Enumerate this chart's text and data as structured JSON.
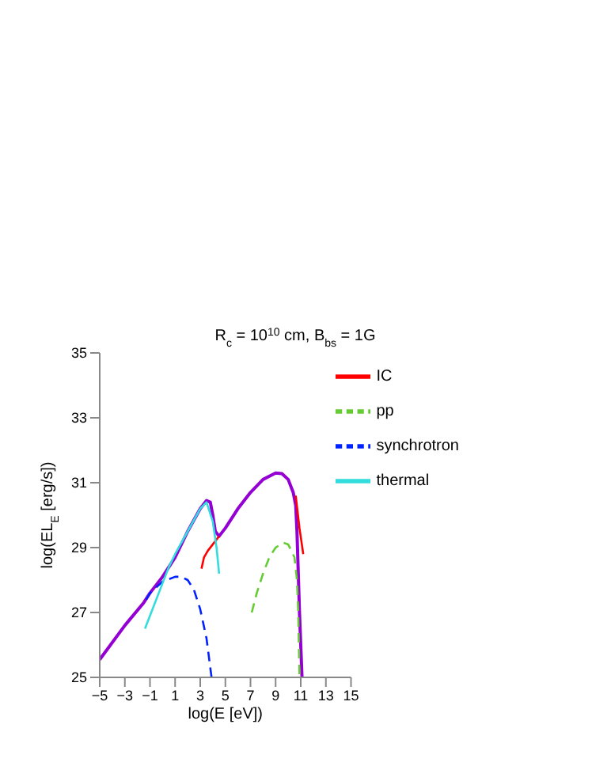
{
  "chart_data": {
    "type": "line",
    "title": "R$_{c}$ = 10$^{10}$ cm, B$_{bs}$ = 1G",
    "xlabel": "log(E [eV])",
    "ylabel": "log(EL$_{E}$ [erg/s])",
    "xlim": [
      -5,
      15
    ],
    "xticks": [
      -5,
      -3,
      -1,
      1,
      3,
      5,
      7,
      9,
      11,
      13,
      15
    ],
    "ylim": [
      25,
      35
    ],
    "yticks": [
      25,
      27,
      29,
      31,
      33,
      35
    ],
    "legend": "top right",
    "marker": "none",
    "series": [
      {
        "color": "#9400d3",
        "line_style": "solid",
        "x": [
          -5,
          -3,
          -1.5,
          -1,
          0,
          1,
          2,
          3,
          3.5,
          3.8,
          4,
          4.2,
          4.5,
          5,
          6,
          7,
          8,
          9,
          9.5,
          10,
          10.4,
          10.6,
          10.7,
          10.9,
          11.1
        ],
        "values": [
          25.55,
          26.6,
          27.3,
          27.6,
          28.1,
          28.7,
          29.5,
          30.2,
          30.45,
          30.4,
          30,
          29.5,
          29.35,
          29.6,
          30.2,
          30.7,
          31.1,
          31.3,
          31.28,
          31.1,
          30.7,
          30.3,
          29.5,
          27,
          25
        ]
      },
      {
        "name": "IC",
        "color": "#ff0000",
        "line_style": "solid",
        "x": [
          3.1,
          3.3,
          3.6,
          4,
          4.5,
          4.6,
          10.6,
          10.9,
          11.2
        ],
        "values": [
          28.35,
          28.7,
          28.9,
          29.1,
          29.35,
          null,
          30.6,
          29.6,
          28.8
        ]
      },
      {
        "name": "pp",
        "color": "#66cc33",
        "line_style": "dashed",
        "x": [
          7.1,
          7.5,
          8,
          8.5,
          9,
          9.6,
          10,
          10.5,
          10.7,
          10.8,
          10.9
        ],
        "values": [
          27,
          27.6,
          28.2,
          28.7,
          29,
          29.15,
          29.1,
          28.7,
          28,
          27,
          25
        ]
      },
      {
        "name": "synchrotron",
        "color": "#0022ff",
        "line_style": "dashed",
        "x": [
          -1.3,
          -1,
          0,
          1,
          1.5,
          2,
          2.5,
          3,
          3.5,
          3.8,
          3.9
        ],
        "values": [
          27.4,
          27.6,
          27.95,
          28.1,
          28.1,
          28,
          27.7,
          27.1,
          26.2,
          25.3,
          25
        ]
      },
      {
        "name": "thermal",
        "color": "#33dddd",
        "line_style": "solid",
        "x": [
          -1.4,
          -0.5,
          0.5,
          1,
          2,
          3,
          3.5,
          4,
          4.3,
          4.5
        ],
        "values": [
          26.5,
          27.4,
          28.4,
          28.8,
          29.5,
          30.2,
          30.4,
          29.8,
          29,
          28.2
        ]
      }
    ]
  }
}
